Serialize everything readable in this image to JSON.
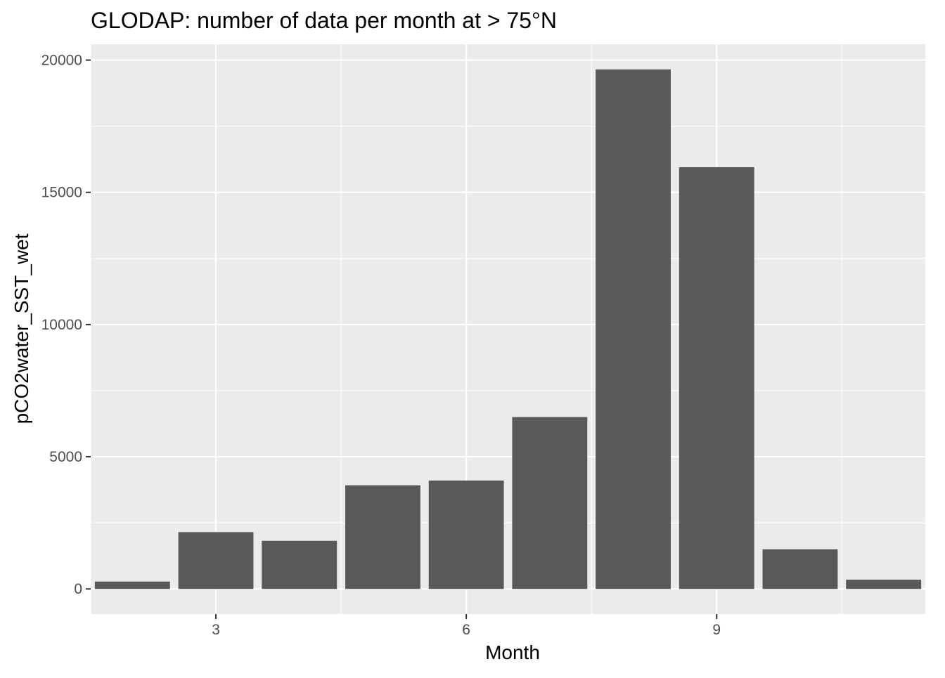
{
  "chart_data": {
    "type": "bar",
    "title": "GLODAP: number of data per month at > 75°N",
    "xlabel": "Month",
    "ylabel": "pCO2water_SST_wet",
    "x": [
      2,
      3,
      4,
      5,
      6,
      7,
      8,
      9,
      10,
      11
    ],
    "values": [
      280,
      2150,
      1820,
      3920,
      4100,
      6500,
      19650,
      15950,
      1500,
      350
    ],
    "xlim": [
      1.5,
      11.5
    ],
    "ylim": [
      -950,
      20600
    ],
    "x_ticks": [
      3,
      6,
      9
    ],
    "y_ticks": [
      0,
      5000,
      10000,
      15000,
      20000
    ],
    "grid": true,
    "legend": "none",
    "colors": {
      "panel_background": "#ebebeb",
      "grid": "#ffffff",
      "bar_fill": "#595959",
      "tick": "#333333",
      "tick_label": "#4d4d4d"
    }
  }
}
